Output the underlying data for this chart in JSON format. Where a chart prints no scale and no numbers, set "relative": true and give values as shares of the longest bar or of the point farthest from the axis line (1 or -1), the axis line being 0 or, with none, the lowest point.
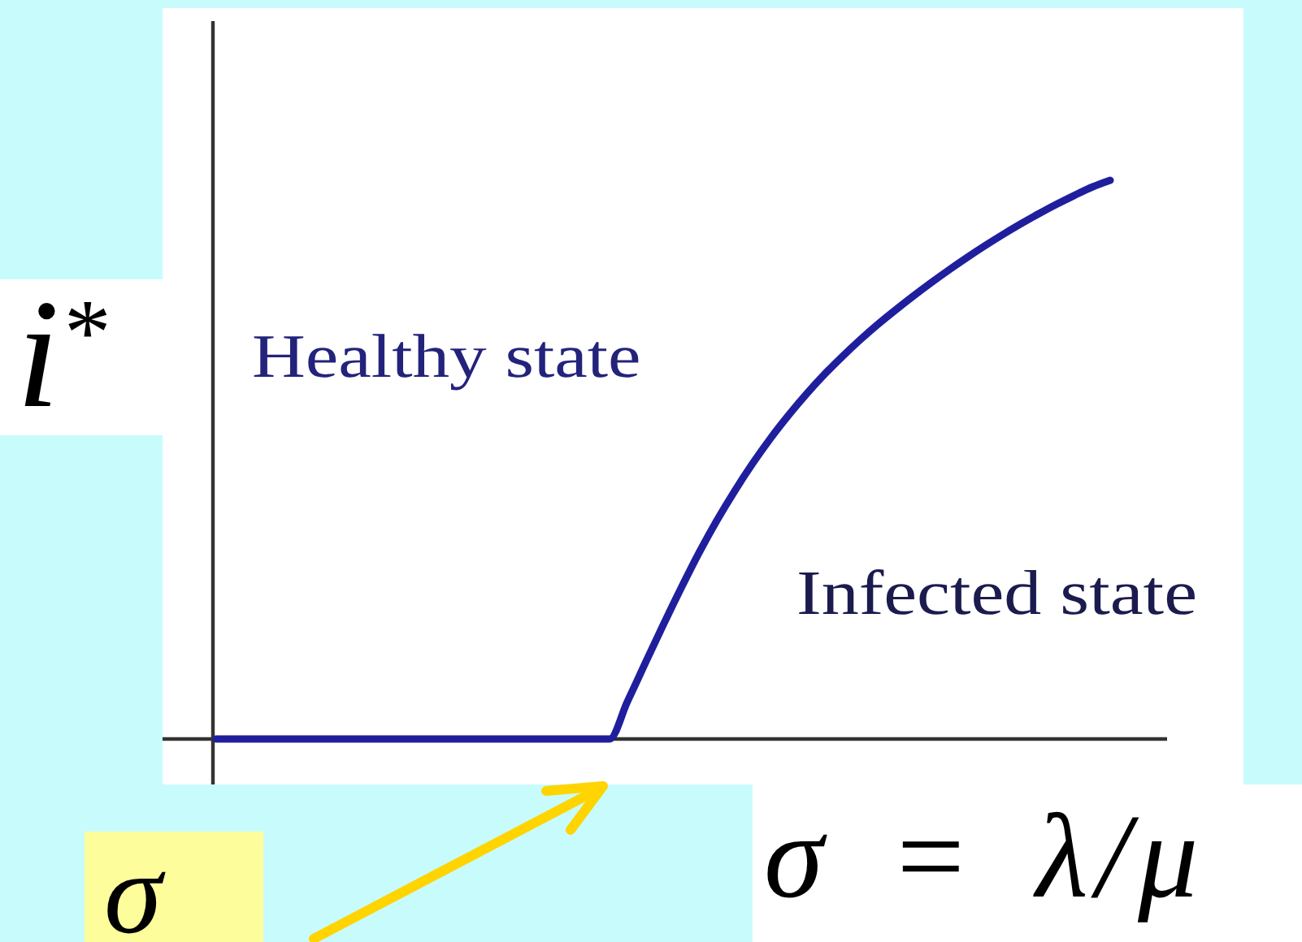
{
  "chart_data": {
    "type": "line",
    "relative": true,
    "categories": [
      null,
      null,
      null,
      null,
      null,
      null,
      null,
      null,
      null,
      null,
      null,
      null,
      null,
      null,
      null,
      null,
      null,
      null,
      null,
      null,
      null,
      null,
      null,
      null,
      null,
      null,
      null,
      null,
      null,
      null,
      null,
      null,
      null,
      null,
      null,
      null,
      null,
      null,
      null,
      null,
      null,
      null,
      null,
      null,
      null,
      null,
      null,
      null,
      null,
      null,
      null
    ],
    "values": [
      0,
      0,
      0,
      0,
      0,
      0,
      0,
      0,
      0,
      0,
      0,
      0,
      0,
      0,
      0,
      0,
      0,
      0,
      0,
      0,
      0,
      0,
      0,
      0.067,
      0.136,
      0.204,
      0.27,
      0.333,
      0.391,
      0.444,
      0.493,
      0.538,
      0.579,
      0.617,
      0.652,
      0.684,
      0.714,
      0.742,
      0.768,
      0.793,
      0.817,
      0.84,
      0.862,
      0.883,
      0.903,
      0.922,
      0.94,
      0.957,
      0.973,
      0.988,
      1
    ],
    "color": "#1f1f9e",
    "ylabel": "i$^{*}$",
    "xlabel": "σ = λ/μ",
    "annotations": [
      "Healthy state",
      "Infected state",
      "σ"
    ]
  }
}
